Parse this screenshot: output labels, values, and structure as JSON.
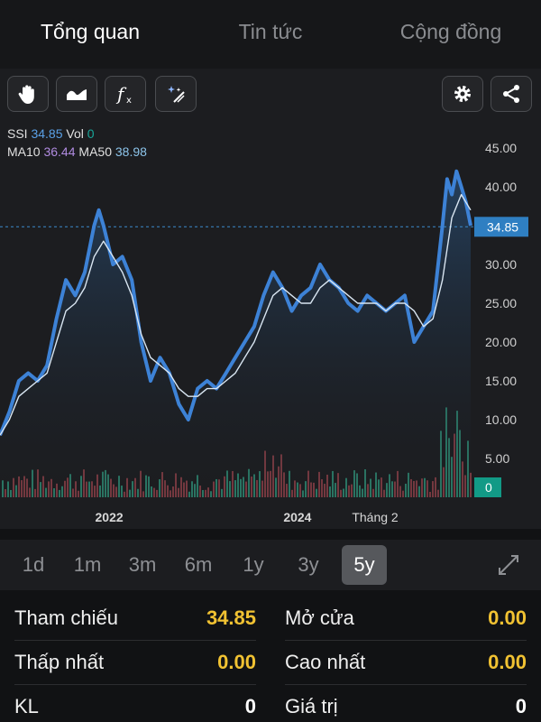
{
  "tabs": [
    {
      "label": "Tổng quan",
      "active": true
    },
    {
      "label": "Tin tức",
      "active": false
    },
    {
      "label": "Cộng đồng",
      "active": false
    }
  ],
  "toolbar": {
    "left_icons": [
      "hand-pointer-icon",
      "area-chart-icon",
      "function-icon",
      "magic-wand-icon"
    ],
    "right_icons": [
      "gear-icon",
      "share-icon"
    ]
  },
  "legend": {
    "symbol": "SSI",
    "price": "34.85",
    "vol_label": "Vol",
    "vol_value": "0",
    "ma10_label": "MA10",
    "ma10_value": "36.44",
    "ma50_label": "MA50",
    "ma50_value": "38.98"
  },
  "chart_data": {
    "type": "line",
    "y_ticks": [
      "45.00",
      "40.00",
      "35.00",
      "30.00",
      "25.00",
      "20.00",
      "15.00",
      "10.00",
      "5.00"
    ],
    "y_range": [
      0,
      45
    ],
    "x_ticks": [
      "2022",
      "2024",
      "Tháng 2"
    ],
    "x_tick_positions": [
      0.232,
      0.632,
      0.797
    ],
    "current_price": "34.85",
    "current_volume": "0",
    "grid": false,
    "series": [
      {
        "color": "#3d82d6",
        "x": [
          0,
          0.02,
          0.04,
          0.06,
          0.08,
          0.1,
          0.12,
          0.14,
          0.16,
          0.18,
          0.2,
          0.21,
          0.22,
          0.24,
          0.26,
          0.28,
          0.3,
          0.32,
          0.34,
          0.36,
          0.38,
          0.4,
          0.42,
          0.44,
          0.46,
          0.48,
          0.5,
          0.52,
          0.54,
          0.56,
          0.58,
          0.6,
          0.62,
          0.64,
          0.66,
          0.68,
          0.7,
          0.72,
          0.74,
          0.76,
          0.78,
          0.8,
          0.82,
          0.84,
          0.86,
          0.88,
          0.9,
          0.92,
          0.94,
          0.95,
          0.96,
          0.97,
          0.98,
          0.99,
          1.0
        ],
        "y": [
          8,
          11,
          15,
          16,
          15,
          17,
          23,
          28,
          26,
          29,
          35,
          37,
          35,
          30,
          31,
          28,
          20,
          15,
          18,
          16,
          12,
          10,
          14,
          15,
          14,
          16,
          18,
          20,
          22,
          26,
          29,
          27,
          24,
          26,
          27,
          30,
          28,
          27,
          25,
          24,
          26,
          25,
          24,
          25,
          26,
          20,
          22,
          24,
          35,
          41,
          39,
          42,
          40,
          38,
          35
        ]
      },
      {
        "color": "#d9e6f2",
        "x": [
          0,
          0.02,
          0.04,
          0.06,
          0.08,
          0.1,
          0.12,
          0.14,
          0.16,
          0.18,
          0.2,
          0.22,
          0.24,
          0.26,
          0.28,
          0.3,
          0.32,
          0.34,
          0.36,
          0.38,
          0.4,
          0.42,
          0.44,
          0.46,
          0.48,
          0.5,
          0.52,
          0.54,
          0.56,
          0.58,
          0.6,
          0.62,
          0.64,
          0.66,
          0.68,
          0.7,
          0.72,
          0.74,
          0.76,
          0.78,
          0.8,
          0.82,
          0.84,
          0.86,
          0.88,
          0.9,
          0.92,
          0.94,
          0.96,
          0.98,
          1.0
        ],
        "y": [
          8,
          10,
          13,
          14,
          15,
          16,
          20,
          24,
          25,
          27,
          31,
          33,
          31,
          29,
          26,
          21,
          18,
          17,
          16,
          14,
          13,
          13,
          14,
          14,
          15,
          16,
          18,
          20,
          23,
          26,
          27,
          26,
          25,
          25,
          27,
          28,
          27,
          26,
          25,
          25,
          25,
          24,
          25,
          25,
          24,
          22,
          23,
          28,
          36,
          39,
          37
        ]
      }
    ]
  },
  "ranges": [
    {
      "label": "1d",
      "active": false
    },
    {
      "label": "1m",
      "active": false
    },
    {
      "label": "3m",
      "active": false
    },
    {
      "label": "6m",
      "active": false
    },
    {
      "label": "1y",
      "active": false
    },
    {
      "label": "3y",
      "active": false
    },
    {
      "label": "5y",
      "active": true
    }
  ],
  "info": [
    {
      "left": {
        "label": "Tham chiếu",
        "value": "34.85",
        "color": "#f1c232"
      },
      "right": {
        "label": "Mở cửa",
        "value": "0.00",
        "color": "#f1c232"
      }
    },
    {
      "left": {
        "label": "Thấp nhất",
        "value": "0.00",
        "color": "#f1c232"
      },
      "right": {
        "label": "Cao nhất",
        "value": "0.00",
        "color": "#f1c232"
      }
    },
    {
      "left": {
        "label": "KL",
        "value": "0",
        "color": "#ffffff"
      },
      "right": {
        "label": "Giá trị",
        "value": "0",
        "color": "#ffffff"
      }
    }
  ]
}
